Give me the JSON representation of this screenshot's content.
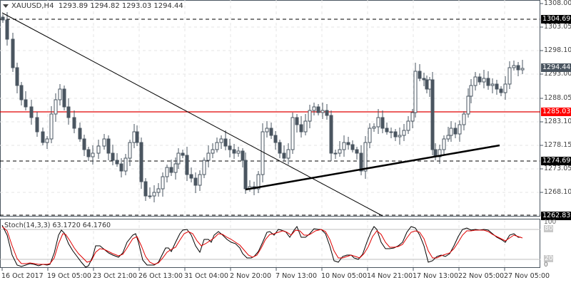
{
  "header": {
    "symbol": "XAUUSD,H4",
    "ohlc": "1293.89 1294.82 1293.03 1294.44"
  },
  "stoch": {
    "label": "Stoch(14,3,3) 63.1720 64.1760",
    "levels": [
      "100",
      "80",
      "20",
      "0"
    ]
  },
  "price_axis": {
    "ticks": [
      "1308.00",
      "1303.05",
      "1298.10",
      "1293.00",
      "1288.05",
      "1283.10",
      "1278.15",
      "1273.05",
      "1268.10"
    ],
    "tags": [
      {
        "value": "1304.69",
        "color": "#000000"
      },
      {
        "value": "1294.44",
        "color": "#4a5560"
      },
      {
        "value": "1285.03",
        "color": "#ff0000"
      },
      {
        "value": "1274.69",
        "color": "#000000"
      },
      {
        "value": "1262.83",
        "color": "#000000"
      }
    ]
  },
  "time_axis": {
    "labels": [
      "16 Oct 2017",
      "19 Oct 05:00",
      "23 Oct 21:00",
      "26 Oct 13:00",
      "31 Oct 04:00",
      "2 Nov 20:00",
      "7 Nov 13:00",
      "10 Nov 05:00",
      "14 Nov 21:00",
      "17 Nov 13:00",
      "22 Nov 05:00",
      "27 Nov 05:00"
    ]
  },
  "colors": {
    "candle": "#4a5560",
    "resistance": "#e00000",
    "stoch_main": "#000000",
    "stoch_signal": "#e00000"
  },
  "chart_data": {
    "type": "candlestick",
    "title": "XAUUSD,H4",
    "symbol": "XAUUSD",
    "timeframe": "H4",
    "last_ohlc": {
      "open": 1293.89,
      "high": 1294.82,
      "low": 1293.03,
      "close": 1294.44
    },
    "ylim": [
      1262.83,
      1308.0
    ],
    "horizontal_levels": [
      {
        "value": 1304.69,
        "style": "dashed",
        "color": "#000000"
      },
      {
        "value": 1285.03,
        "style": "solid",
        "color": "#e00000"
      },
      {
        "value": 1274.69,
        "style": "dashed",
        "color": "#000000"
      },
      {
        "value": 1262.83,
        "style": "dashed",
        "color": "#000000"
      }
    ],
    "trendlines": [
      {
        "name": "descending",
        "from": [
          "16 Oct 2017",
          1306.0
        ],
        "to": [
          "14 Nov 21:00",
          1263.0
        ]
      },
      {
        "name": "ascending support",
        "from": [
          "2 Nov 20:00",
          1268.9
        ],
        "to": [
          "22 Nov 05:00",
          1277.9
        ]
      }
    ],
    "x_ticks": [
      "16 Oct 2017",
      "19 Oct 05:00",
      "23 Oct 21:00",
      "26 Oct 13:00",
      "31 Oct 04:00",
      "2 Nov 20:00",
      "7 Nov 13:00",
      "10 Nov 05:00",
      "14 Nov 21:00",
      "17 Nov 13:00",
      "22 Nov 05:00",
      "27 Nov 05:00"
    ],
    "y_ticks": [
      1308.0,
      1303.05,
      1298.1,
      1293.0,
      1288.05,
      1283.1,
      1278.15,
      1273.05,
      1268.1
    ],
    "approx_close_path": [
      {
        "x": "16 Oct 2017",
        "close": 1305
      },
      {
        "x": "19 Oct 05:00",
        "close": 1281
      },
      {
        "x": "23 Oct 21:00",
        "close": 1278
      },
      {
        "x": "26 Oct 13:00",
        "close": 1268
      },
      {
        "x": "31 Oct 04:00",
        "close": 1277
      },
      {
        "x": "2 Nov 20:00",
        "close": 1269
      },
      {
        "x": "7 Nov 13:00",
        "close": 1278
      },
      {
        "x": "10 Nov 05:00",
        "close": 1286
      },
      {
        "x": "14 Nov 21:00",
        "close": 1279
      },
      {
        "x": "17 Nov 13:00",
        "close": 1276
      },
      {
        "x": "22 Nov 05:00",
        "close": 1291
      },
      {
        "x": "27 Nov 05:00",
        "close": 1294.44
      }
    ],
    "indicator": {
      "name": "Stoch(14,3,3)",
      "main": 63.172,
      "signal": 64.176,
      "levels": [
        80,
        20
      ],
      "range": [
        0,
        100
      ]
    }
  }
}
